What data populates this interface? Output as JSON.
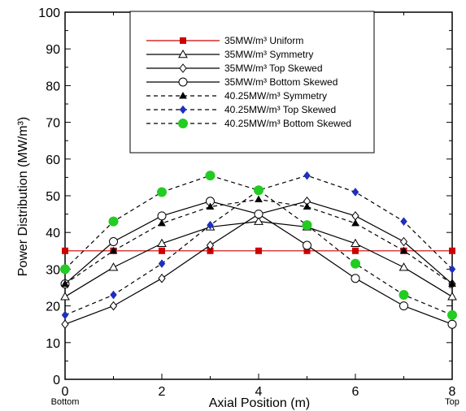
{
  "chart_data": {
    "type": "line",
    "title": "",
    "xlabel": "Axial Position (m)",
    "ylabel": "Power Distribution (MW/m³)",
    "xlim": [
      0,
      8
    ],
    "ylim": [
      0,
      100
    ],
    "xticks": [
      0,
      2,
      4,
      6,
      8
    ],
    "yticks": [
      0,
      10,
      20,
      30,
      40,
      50,
      60,
      70,
      80,
      90,
      100
    ],
    "x_end_labels": {
      "left": "Bottom",
      "right": "Top"
    },
    "grid": false,
    "legend_position": "top-center",
    "x": [
      0,
      1,
      2,
      3,
      4,
      5,
      6,
      7,
      8
    ],
    "series": [
      {
        "name": "35MW/m³ Uniform",
        "values": [
          35,
          35,
          35,
          35,
          35,
          35,
          35,
          35,
          35
        ],
        "line": "solid",
        "marker": "square-filled",
        "color": "#cc0000",
        "marker_color": "#cc0000"
      },
      {
        "name": "35MW/m³ Symmetry",
        "values": [
          22.5,
          30.5,
          37,
          41.5,
          43,
          41.5,
          37,
          30.5,
          22.5
        ],
        "line": "solid",
        "marker": "triangle-open",
        "color": "#000000",
        "marker_color": "#000000"
      },
      {
        "name": "35MW/m³ Top Skewed",
        "values": [
          15,
          20,
          27.5,
          36.5,
          45,
          48.5,
          44.5,
          37.5,
          26
        ],
        "line": "solid",
        "marker": "diamond-open",
        "color": "#000000",
        "marker_color": "#000000"
      },
      {
        "name": "35MW/m³ Bottom Skewed",
        "values": [
          26,
          37.5,
          44.5,
          48.5,
          45,
          36.5,
          27.5,
          20,
          15
        ],
        "line": "solid",
        "marker": "circle-open",
        "color": "#000000",
        "marker_color": "#000000"
      },
      {
        "name": "40.25MW/m³ Symmetry",
        "values": [
          26,
          35,
          42.5,
          47,
          49,
          47,
          42.5,
          35,
          26
        ],
        "line": "dashed",
        "marker": "triangle-filled",
        "color": "#000000",
        "marker_color": "#000000"
      },
      {
        "name": "40.25MW/m³ Top Skewed",
        "values": [
          17.5,
          23,
          31.5,
          42,
          51.5,
          55.5,
          51,
          43,
          30
        ],
        "line": "dashed",
        "marker": "diamond-filled",
        "color": "#000000",
        "marker_color": "#1f2fbf"
      },
      {
        "name": "40.25MW/m³ Bottom Skewed",
        "values": [
          30,
          43,
          51,
          55.5,
          51.5,
          42,
          31.5,
          23,
          17.5
        ],
        "line": "dashed",
        "marker": "circle-filled",
        "color": "#000000",
        "marker_color": "#22cc22"
      }
    ]
  }
}
